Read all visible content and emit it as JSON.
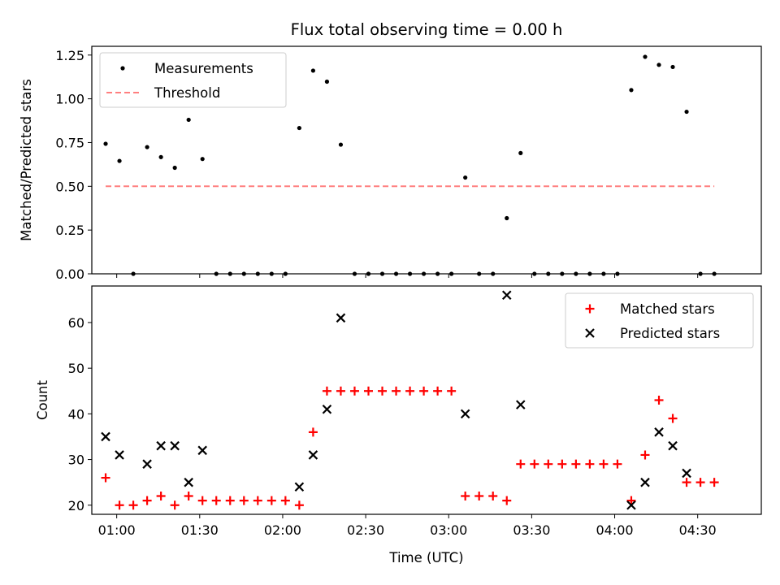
{
  "chart_data": [
    {
      "type": "scatter",
      "panel": "top",
      "title": "Flux total observing time = 0.00 h",
      "xlabel": "",
      "ylabel": "Matched/Predicted stars",
      "xlim": [
        "00:51",
        "04:53"
      ],
      "ylim": [
        0,
        1.3
      ],
      "yticks": [
        0.0,
        0.25,
        0.5,
        0.75,
        1.0,
        1.25
      ],
      "ytick_labels": [
        "0.00",
        "0.25",
        "0.50",
        "0.75",
        "1.00",
        "1.25"
      ],
      "xticks": [
        "01:00",
        "01:30",
        "02:00",
        "02:30",
        "03:00",
        "03:30",
        "04:00",
        "04:30"
      ],
      "legend": {
        "position": "upper left",
        "entries": [
          "Measurements",
          "Threshold"
        ]
      },
      "colors": {
        "measurements": "#000000",
        "threshold": "#ff7f7f"
      },
      "series": [
        {
          "name": "Measurements",
          "marker": "dot",
          "x": [
            "00:56",
            "01:01",
            "01:06",
            "01:11",
            "01:16",
            "01:21",
            "01:26",
            "01:31",
            "01:36",
            "01:41",
            "01:46",
            "01:51",
            "01:56",
            "02:01",
            "02:06",
            "02:11",
            "02:16",
            "02:21",
            "02:26",
            "02:31",
            "02:36",
            "02:41",
            "02:46",
            "02:51",
            "02:56",
            "03:01",
            "03:06",
            "03:11",
            "03:16",
            "03:21",
            "03:26",
            "03:31",
            "03:36",
            "03:41",
            "03:46",
            "03:51",
            "03:56",
            "04:01",
            "04:06",
            "04:11",
            "04:16",
            "04:21",
            "04:26",
            "04:31",
            "04:36"
          ],
          "y": [
            0.743,
            0.645,
            0.0,
            0.724,
            0.667,
            0.606,
            0.88,
            0.656,
            0.0,
            0.0,
            0.0,
            0.0,
            0.0,
            0.0,
            0.833,
            1.161,
            1.098,
            0.738,
            0.0,
            0.0,
            0.0,
            0.0,
            0.0,
            0.0,
            0.0,
            0.0,
            0.55,
            0.0,
            0.0,
            0.318,
            0.69,
            0.0,
            0.0,
            0.0,
            0.0,
            0.0,
            0.0,
            0.0,
            1.05,
            1.24,
            1.194,
            1.182,
            0.926,
            0.0,
            0.0
          ]
        },
        {
          "name": "Threshold",
          "marker": "dashed-line",
          "x": [
            "00:56",
            "04:36"
          ],
          "y": [
            0.5,
            0.5
          ]
        }
      ]
    },
    {
      "type": "scatter",
      "panel": "bottom",
      "xlabel": "Time (UTC)",
      "ylabel": "Count",
      "xlim": [
        "00:51",
        "04:53"
      ],
      "ylim": [
        18,
        68
      ],
      "yticks": [
        20,
        30,
        40,
        50,
        60
      ],
      "ytick_labels": [
        "20",
        "30",
        "40",
        "50",
        "60"
      ],
      "xticks": [
        "01:00",
        "01:30",
        "02:00",
        "02:30",
        "03:00",
        "03:30",
        "04:00",
        "04:30"
      ],
      "legend": {
        "position": "upper right",
        "entries": [
          "Matched stars",
          "Predicted stars"
        ]
      },
      "colors": {
        "matched": "#ff0000",
        "predicted": "#000000"
      },
      "series": [
        {
          "name": "Matched stars",
          "marker": "plus",
          "x": [
            "00:56",
            "01:01",
            "01:06",
            "01:11",
            "01:16",
            "01:21",
            "01:26",
            "01:31",
            "01:36",
            "01:41",
            "01:46",
            "01:51",
            "01:56",
            "02:01",
            "02:06",
            "02:11",
            "02:16",
            "02:21",
            "02:26",
            "02:31",
            "02:36",
            "02:41",
            "02:46",
            "02:51",
            "02:56",
            "03:01",
            "03:06",
            "03:11",
            "03:16",
            "03:21",
            "03:26",
            "03:31",
            "03:36",
            "03:41",
            "03:46",
            "03:51",
            "03:56",
            "04:01",
            "04:06",
            "04:11",
            "04:16",
            "04:21",
            "04:26",
            "04:31",
            "04:36"
          ],
          "y": [
            26,
            20,
            20,
            21,
            22,
            20,
            22,
            21,
            21,
            21,
            21,
            21,
            21,
            21,
            20,
            36,
            45,
            45,
            45,
            45,
            45,
            45,
            45,
            45,
            45,
            45,
            22,
            22,
            22,
            21,
            29,
            29,
            29,
            29,
            29,
            29,
            29,
            29,
            21,
            31,
            43,
            39,
            25,
            25,
            25
          ]
        },
        {
          "name": "Predicted stars",
          "marker": "x",
          "x": [
            "00:56",
            "01:01",
            "01:11",
            "01:16",
            "01:21",
            "01:26",
            "01:31",
            "02:06",
            "02:11",
            "02:16",
            "02:21",
            "03:06",
            "03:21",
            "03:26",
            "04:06",
            "04:11",
            "04:16",
            "04:21",
            "04:26"
          ],
          "y": [
            35,
            31,
            29,
            33,
            33,
            25,
            32,
            24,
            31,
            41,
            61,
            40,
            66,
            42,
            20,
            25,
            36,
            33,
            27
          ]
        }
      ]
    }
  ]
}
